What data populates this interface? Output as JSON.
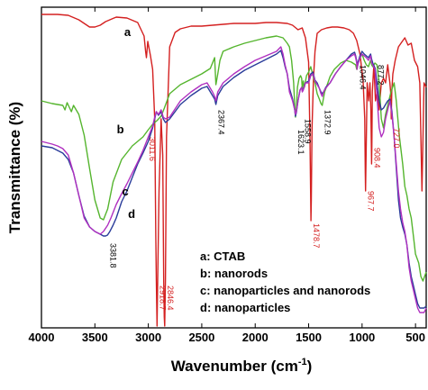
{
  "chart_data": {
    "type": "line",
    "xlabel": "Wavenumber",
    "xlabel_unit": "(cm",
    "xlabel_unit_sup": "-1",
    "xlabel_unit_close": ")",
    "ylabel": "Transmittance (%)",
    "xlim": [
      4000,
      400
    ],
    "x_reversed": true,
    "x_ticks": [
      4000,
      3500,
      3000,
      2500,
      2000,
      1500,
      1000,
      500
    ],
    "y_ticks_shown": false,
    "colors": {
      "a": "#d42020",
      "b": "#55b52e",
      "c": "#b030c0",
      "d": "#2a3c9a",
      "label_black": "#000000",
      "label_red": "#d42020"
    },
    "series": [
      {
        "name": "a",
        "color": "#d42020",
        "x": [
          4000,
          3850,
          3750,
          3650,
          3550,
          3500,
          3450,
          3400,
          3300,
          3200,
          3100,
          3040,
          3025,
          3018,
          3012,
          3005,
          2980,
          2960,
          2940,
          2930,
          2925,
          2918.7,
          2912,
          2900,
          2880,
          2865,
          2856,
          2851,
          2846.4,
          2840,
          2830,
          2800,
          2750,
          2700,
          2600,
          2500,
          2400,
          2300,
          2200,
          2100,
          2000,
          1900,
          1800,
          1700,
          1650,
          1600,
          1560,
          1530,
          1500,
          1488,
          1482,
          1478.7,
          1475,
          1468,
          1455,
          1440,
          1420,
          1380,
          1330,
          1280,
          1230,
          1170,
          1120,
          1080,
          1050,
          1020,
          990,
          975,
          970,
          967.7,
          962,
          952,
          938,
          926,
          918,
          911,
          908.4,
          904,
          890,
          875,
          860,
          840,
          820,
          800,
          780,
          760,
          740,
          730,
          727,
          722,
          712,
          690,
          660,
          630,
          600,
          570,
          540,
          510,
          480,
          460,
          440,
          420,
          400
        ],
        "y": [
          4,
          4,
          5,
          10,
          18,
          18,
          16,
          12,
          7,
          8,
          13,
          28,
          45,
          52,
          44,
          34,
          50,
          65,
          120,
          250,
          300,
          350,
          300,
          200,
          120,
          160,
          300,
          340,
          350,
          300,
          140,
          40,
          24,
          20,
          17,
          17,
          16,
          15,
          14,
          14,
          14,
          13,
          13,
          14,
          16,
          21,
          19,
          30,
          57,
          140,
          200,
          233,
          210,
          130,
          75,
          45,
          25,
          21,
          19,
          18,
          18,
          19,
          21,
          25,
          33,
          48,
          78,
          120,
          180,
          200,
          160,
          80,
          100,
          80,
          110,
          170,
          150,
          90,
          60,
          100,
          90,
          110,
          80,
          75,
          80,
          60,
          80,
          95,
          120,
          90,
          70,
          55,
          40,
          35,
          30,
          38,
          36,
          55,
          62,
          80,
          200,
          80,
          85
        ]
      },
      {
        "name": "b",
        "color": "#55b52e",
        "x": [
          4000,
          3900,
          3800,
          3780,
          3760,
          3720,
          3700,
          3650,
          3600,
          3550,
          3500,
          3450,
          3420,
          3380,
          3330,
          3250,
          3150,
          3050,
          3000,
          2960,
          2920,
          2880,
          2850,
          2800,
          2700,
          2600,
          2500,
          2420,
          2380,
          2367.4,
          2350,
          2330,
          2300,
          2200,
          2100,
          2000,
          1900,
          1800,
          1740,
          1700,
          1680,
          1660,
          1640,
          1628,
          1623.1,
          1615,
          1605,
          1590,
          1575,
          1565,
          1558.9,
          1550,
          1540,
          1520,
          1500,
          1480,
          1460,
          1440,
          1420,
          1400,
          1385,
          1372.9,
          1365,
          1350,
          1320,
          1300,
          1260,
          1200,
          1150,
          1100,
          1060,
          1050,
          1040,
          1030,
          1000,
          980,
          960,
          940,
          920,
          910,
          900,
          880,
          860,
          840,
          820,
          800,
          780,
          760,
          730,
          700,
          680,
          650,
          620,
          600,
          580,
          560,
          540,
          520,
          500,
          470,
          450,
          430,
          400
        ],
        "y": [
          100,
          103,
          105,
          110,
          102,
          112,
          105,
          115,
          138,
          175,
          210,
          230,
          232,
          220,
          190,
          165,
          150,
          140,
          132,
          126,
          122,
          117,
          108,
          92,
          82,
          76,
          70,
          64,
          52,
          82,
          70,
          55,
          45,
          40,
          36,
          33,
          30,
          28,
          30,
          36,
          40,
          55,
          80,
          110,
          118,
          108,
          85,
          75,
          72,
          75,
          88,
          78,
          85,
          72,
          68,
          62,
          72,
          80,
          92,
          98,
          103,
          105,
          100,
          90,
          80,
          73,
          65,
          58,
          55,
          57,
          60,
          65,
          60,
          55,
          48,
          55,
          60,
          62,
          55,
          60,
          62,
          58,
          60,
          80,
          120,
          130,
          115,
          105,
          90,
          80,
          100,
          140,
          170,
          195,
          205,
          220,
          230,
          250,
          270,
          280,
          295,
          300,
          290
        ]
      },
      {
        "name": "c",
        "color": "#b030c0",
        "x": [
          4000,
          3900,
          3850,
          3800,
          3750,
          3700,
          3650,
          3600,
          3550,
          3500,
          3450,
          3420,
          3380,
          3350,
          3300,
          3250,
          3200,
          3150,
          3100,
          3050,
          3000,
          2960,
          2940,
          2925,
          2905,
          2880,
          2860,
          2840,
          2800,
          2700,
          2600,
          2500,
          2450,
          2400,
          2380,
          2367.4,
          2350,
          2300,
          2200,
          2100,
          2000,
          1900,
          1800,
          1760,
          1740,
          1720,
          1700,
          1680,
          1650,
          1630,
          1623.1,
          1615,
          1600,
          1580,
          1565,
          1558.9,
          1550,
          1530,
          1500,
          1480,
          1460,
          1440,
          1420,
          1400,
          1385,
          1372.9,
          1360,
          1340,
          1300,
          1250,
          1200,
          1150,
          1100,
          1070,
          1060,
          1050,
          1046.4,
          1040,
          1020,
          1000,
          980,
          960,
          940,
          920,
          910,
          900,
          880,
          860,
          840,
          820,
          800,
          780,
          760,
          740,
          720,
          700,
          680,
          660,
          640,
          620,
          600,
          580,
          560,
          540,
          520,
          500,
          480,
          460,
          440,
          420,
          400
        ],
        "y": [
          145,
          148,
          150,
          153,
          160,
          180,
          205,
          230,
          240,
          245,
          248,
          245,
          238,
          230,
          215,
          203,
          192,
          180,
          168,
          155,
          140,
          128,
          118,
          112,
          115,
          110,
          118,
          120,
          118,
          100,
          90,
          82,
          80,
          90,
          95,
          100,
          90,
          80,
          70,
          62,
          55,
          50,
          45,
          40,
          48,
          60,
          70,
          90,
          100,
          110,
          115,
          112,
          100,
          88,
          85,
          90,
          88,
          80,
          80,
          72,
          70,
          78,
          82,
          86,
          92,
          95,
          90,
          86,
          80,
          70,
          62,
          55,
          50,
          48,
          52,
          58,
          65,
          60,
          52,
          48,
          50,
          52,
          55,
          50,
          58,
          60,
          65,
          95,
          130,
          140,
          135,
          120,
          110,
          100,
          115,
          140,
          170,
          200,
          220,
          235,
          245,
          260,
          285,
          300,
          310,
          320,
          330,
          335,
          335,
          335,
          330
        ]
      },
      {
        "name": "d",
        "color": "#2a3c9a",
        "x": [
          4000,
          3900,
          3850,
          3800,
          3750,
          3700,
          3650,
          3600,
          3550,
          3500,
          3450,
          3420,
          3400,
          3381.8,
          3360,
          3330,
          3300,
          3250,
          3200,
          3150,
          3100,
          3050,
          3000,
          2960,
          2940,
          2925,
          2905,
          2880,
          2860,
          2840,
          2800,
          2700,
          2600,
          2500,
          2450,
          2400,
          2380,
          2367.4,
          2350,
          2300,
          2200,
          2100,
          2000,
          1900,
          1800,
          1760,
          1740,
          1720,
          1700,
          1680,
          1650,
          1630,
          1623.1,
          1615,
          1600,
          1580,
          1565,
          1558.9,
          1550,
          1530,
          1500,
          1480,
          1460,
          1440,
          1420,
          1400,
          1385,
          1372.9,
          1360,
          1340,
          1300,
          1250,
          1200,
          1150,
          1100,
          1070,
          1060,
          1050,
          1046.4,
          1040,
          1020,
          1000,
          980,
          960,
          940,
          920,
          910,
          900,
          877.2,
          860,
          840,
          820,
          800,
          780,
          760,
          740,
          720,
          700,
          680,
          660,
          640,
          620,
          600,
          580,
          560,
          540,
          520,
          500,
          480,
          460,
          440,
          420,
          400
        ],
        "y": [
          150,
          152,
          155,
          158,
          165,
          180,
          205,
          228,
          240,
          245,
          248,
          250,
          250,
          249,
          245,
          238,
          230,
          212,
          200,
          185,
          170,
          158,
          145,
          130,
          120,
          112,
          116,
          112,
          120,
          124,
          120,
          104,
          94,
          86,
          84,
          94,
          98,
          104,
          94,
          84,
          74,
          66,
          60,
          54,
          48,
          44,
          52,
          62,
          70,
          86,
          98,
          110,
          117,
          113,
          100,
          88,
          85,
          89,
          87,
          80,
          78,
          70,
          68,
          77,
          80,
          86,
          90,
          92,
          90,
          85,
          80,
          70,
          62,
          55,
          48,
          46,
          50,
          56,
          62,
          58,
          50,
          45,
          48,
          50,
          52,
          48,
          54,
          58,
          64,
          80,
          100,
          110,
          108,
          104,
          100,
          98,
          112,
          140,
          175,
          210,
          230,
          240,
          248,
          260,
          280,
          295,
          305,
          315,
          325,
          330,
          330,
          330,
          328
        ]
      }
    ],
    "series_labels": [
      "a",
      "b",
      "c",
      "d"
    ],
    "peak_labels": [
      {
        "text": "3011.6",
        "color": "#d42020"
      },
      {
        "text": "2918.7",
        "color": "#d42020"
      },
      {
        "text": "2846.4",
        "color": "#d42020"
      },
      {
        "text": "2367.4",
        "color": "#000000"
      },
      {
        "text": "3381.8",
        "color": "#000000"
      },
      {
        "text": "1623.1",
        "color": "#000000"
      },
      {
        "text": "1558.9",
        "color": "#000000"
      },
      {
        "text": "1372.9",
        "color": "#000000"
      },
      {
        "text": "1478.7",
        "color": "#d42020"
      },
      {
        "text": "1046.4",
        "color": "#000000"
      },
      {
        "text": "967.7",
        "color": "#d42020"
      },
      {
        "text": "908.4",
        "color": "#d42020"
      },
      {
        "text": "877.2",
        "color": "#000000"
      },
      {
        "text": "727.0",
        "color": "#d42020"
      }
    ],
    "legend": {
      "placement": "bottom-right",
      "entries": [
        "a: CTAB",
        "b: nanorods",
        "c: nanoparticles and nanorods",
        "d: nanoparticles"
      ]
    }
  }
}
